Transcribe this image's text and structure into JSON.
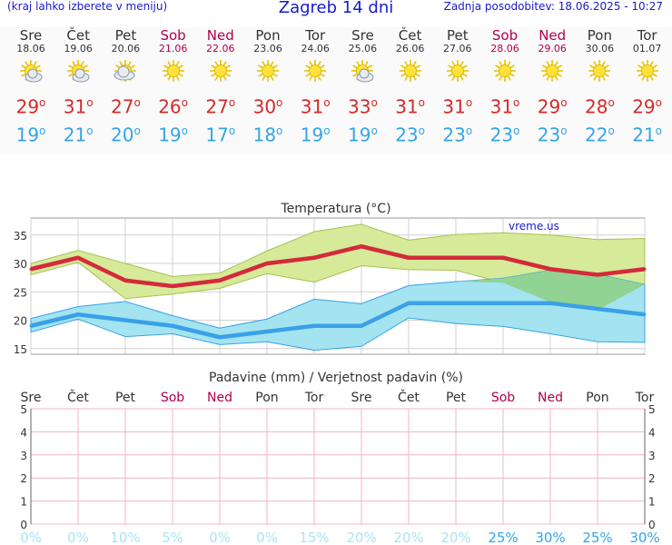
{
  "header": {
    "left_note": "(kraj lahko izberete v meniju)",
    "title": "Zagreb 14 dni",
    "updated": "Zadnja posodobitev: 18.06.2025 - 10:27"
  },
  "days": [
    {
      "name": "Sre",
      "date": "18.06",
      "weekend": false,
      "icon": "partly-cloudy-icon",
      "tmax": "29",
      "tmin": "19"
    },
    {
      "name": "Čet",
      "date": "19.06",
      "weekend": false,
      "icon": "partly-cloudy-icon",
      "tmax": "31",
      "tmin": "21"
    },
    {
      "name": "Pet",
      "date": "20.06",
      "weekend": false,
      "icon": "cloudy-sun-icon",
      "tmax": "27",
      "tmin": "20"
    },
    {
      "name": "Sob",
      "date": "21.06",
      "weekend": true,
      "icon": "sun-icon",
      "tmax": "26",
      "tmin": "19"
    },
    {
      "name": "Ned",
      "date": "22.06",
      "weekend": true,
      "icon": "sun-icon",
      "tmax": "27",
      "tmin": "17"
    },
    {
      "name": "Pon",
      "date": "23.06",
      "weekend": false,
      "icon": "sun-icon",
      "tmax": "30",
      "tmin": "18"
    },
    {
      "name": "Tor",
      "date": "24.06",
      "weekend": false,
      "icon": "sun-icon",
      "tmax": "31",
      "tmin": "19"
    },
    {
      "name": "Sre",
      "date": "25.06",
      "weekend": false,
      "icon": "partly-cloudy-icon",
      "tmax": "33",
      "tmin": "19"
    },
    {
      "name": "Čet",
      "date": "26.06",
      "weekend": false,
      "icon": "sun-icon",
      "tmax": "31",
      "tmin": "23"
    },
    {
      "name": "Pet",
      "date": "27.06",
      "weekend": false,
      "icon": "sun-icon",
      "tmax": "31",
      "tmin": "23"
    },
    {
      "name": "Sob",
      "date": "28.06",
      "weekend": true,
      "icon": "sun-icon",
      "tmax": "31",
      "tmin": "23"
    },
    {
      "name": "Ned",
      "date": "29.06",
      "weekend": true,
      "icon": "sun-icon",
      "tmax": "29",
      "tmin": "23"
    },
    {
      "name": "Pon",
      "date": "30.06",
      "weekend": false,
      "icon": "sun-icon",
      "tmax": "28",
      "tmin": "22"
    },
    {
      "name": "Tor",
      "date": "01.07",
      "weekend": false,
      "icon": "sun-icon",
      "tmax": "29",
      "tmin": "21"
    }
  ],
  "colors": {
    "max_line": "#d42a3a",
    "min_line": "#3aa0e8",
    "max_band": "#d6ea9a",
    "min_band": "#9ee3ef",
    "overlap_band": "#8fd08a",
    "weekend_text": "#b0004e",
    "grid": "#d0d0d0",
    "precip_grid": "#f2b3c8",
    "prob_text": "#a8e4f5",
    "prob_text_strong": "#33a5e5"
  },
  "chart_data": [
    {
      "type": "line",
      "title": "Temperatura (°C)",
      "watermark": "vreme.us",
      "ylim": [
        14,
        38
      ],
      "yticks": [
        15,
        20,
        25,
        30,
        35
      ],
      "series": [
        {
          "values": [
            29,
            31,
            27,
            26,
            27,
            30,
            31,
            33,
            31,
            31,
            31,
            29,
            28,
            29
          ]
        },
        {
          "values": [
            19,
            21,
            20,
            19,
            17,
            18,
            19,
            19,
            23,
            23,
            23,
            23,
            22,
            21
          ]
        }
      ],
      "bands": [
        {
          "upper": [
            30,
            32.3,
            30,
            27.7,
            28.3,
            32.2,
            35.6,
            36.9,
            34.1,
            35.1,
            35.4,
            35,
            34.2,
            34.4
          ],
          "lower": [
            28,
            30.2,
            23.8,
            24.6,
            25.6,
            28.2,
            26.7,
            29.6,
            28.9,
            28.8,
            26.6,
            23.2,
            21.8,
            26.4
          ]
        },
        {
          "upper": [
            20.3,
            22.4,
            23.3,
            20.8,
            18.6,
            20.2,
            23.7,
            22.9,
            26.1,
            26.8,
            27.4,
            28.8,
            28.1,
            26.3
          ],
          "lower": [
            17.9,
            20.2,
            17.1,
            17.6,
            15.7,
            16.2,
            14.7,
            15.4,
            20.4,
            19.4,
            18.9,
            17.6,
            16.2,
            16.1
          ]
        }
      ]
    },
    {
      "type": "bar",
      "title": "Padavine (mm) / Verjetnost padavin (%)",
      "categories": [
        "Sre",
        "Čet",
        "Pet",
        "Sob",
        "Ned",
        "Pon",
        "Tor",
        "Sre",
        "Čet",
        "Pet",
        "Sob",
        "Ned",
        "Pon",
        "Tor"
      ],
      "weekend": [
        false,
        false,
        false,
        true,
        true,
        false,
        false,
        false,
        false,
        false,
        true,
        true,
        false,
        false
      ],
      "ylim": [
        0,
        5
      ],
      "yticks": [
        0,
        1,
        2,
        3,
        4,
        5
      ],
      "values": [
        0,
        0,
        0,
        0,
        0,
        0,
        0,
        0,
        0,
        0,
        0,
        0,
        0,
        0
      ],
      "probability": [
        "0%",
        "0%",
        "10%",
        "5%",
        "0%",
        "0%",
        "15%",
        "20%",
        "20%",
        "20%",
        "25%",
        "30%",
        "25%",
        "30%"
      ]
    }
  ]
}
